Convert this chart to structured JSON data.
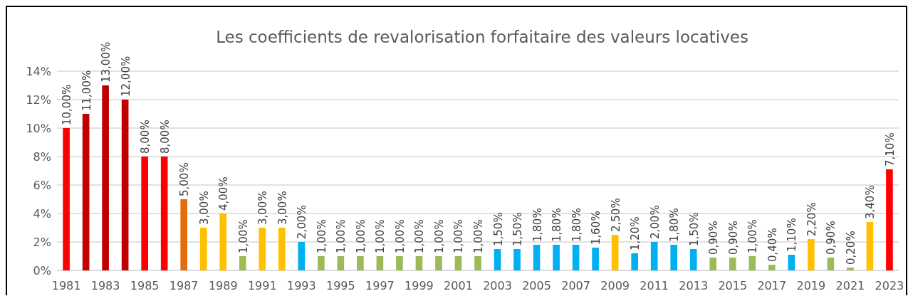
{
  "chart_data": {
    "type": "bar",
    "title": "Les coefficients de revalorisation forfaitaire des valeurs locatives",
    "categories": [
      "1981",
      null,
      "1983",
      null,
      "1985",
      null,
      "1987",
      null,
      "1989",
      null,
      "1991",
      null,
      "1993",
      null,
      "1995",
      null,
      "1997",
      null,
      "1999",
      null,
      "2001",
      null,
      "2003",
      null,
      "2005",
      null,
      "2007",
      null,
      "2009",
      null,
      "2011",
      null,
      "2013",
      null,
      "2015",
      null,
      "2017",
      null,
      "2019",
      null,
      "2021",
      null,
      "2023"
    ],
    "values": [
      10,
      11,
      13,
      12,
      8,
      8,
      5,
      3,
      4,
      1,
      3,
      3,
      2,
      1,
      1,
      1,
      1,
      1,
      1,
      1,
      1,
      1,
      1.5,
      1.5,
      1.8,
      1.8,
      1.8,
      1.6,
      2.5,
      1.2,
      2,
      1.8,
      1.5,
      0.9,
      0.9,
      1,
      0.4,
      1.1,
      2.2,
      0.9,
      0.2,
      3.4,
      7.1
    ],
    "value_labels": [
      "10,00%",
      "11,00%",
      "13,00%",
      "12,00%",
      "8,00%",
      "8,00%",
      "5,00%",
      "3,00%",
      "4,00%",
      "1,00%",
      "3,00%",
      "3,00%",
      "2,00%",
      "1,00%",
      "1,00%",
      "1,00%",
      "1,00%",
      "1,00%",
      "1,00%",
      "1,00%",
      "1,00%",
      "1,00%",
      "1,50%",
      "1,50%",
      "1,80%",
      "1,80%",
      "1,80%",
      "1,60%",
      "2,50%",
      "1,20%",
      "2,00%",
      "1,80%",
      "1,50%",
      "0,90%",
      "0,90%",
      "1,00%",
      "0,40%",
      "1,10%",
      "2,20%",
      "0,90%",
      "0,20%",
      "3,40%",
      "7,10%"
    ],
    "colors": [
      "#ff0000",
      "#c00000",
      "#c00000",
      "#c00000",
      "#ff0000",
      "#ff0000",
      "#e46c0a",
      "#ffc000",
      "#ffc000",
      "#9bbb59",
      "#ffc000",
      "#ffc000",
      "#00b0f0",
      "#9bbb59",
      "#9bbb59",
      "#9bbb59",
      "#9bbb59",
      "#9bbb59",
      "#9bbb59",
      "#9bbb59",
      "#9bbb59",
      "#9bbb59",
      "#00b0f0",
      "#00b0f0",
      "#00b0f0",
      "#00b0f0",
      "#00b0f0",
      "#00b0f0",
      "#ffc000",
      "#00b0f0",
      "#00b0f0",
      "#00b0f0",
      "#00b0f0",
      "#9bbb59",
      "#9bbb59",
      "#9bbb59",
      "#9bbb59",
      "#00b0f0",
      "#ffc000",
      "#9bbb59",
      "#9bbb59",
      "#ffc000",
      "#ff0000"
    ],
    "ylim": [
      0,
      14
    ],
    "yticks": [
      {
        "value": 0,
        "label": "0%"
      },
      {
        "value": 2,
        "label": "2%"
      },
      {
        "value": 4,
        "label": "4%"
      },
      {
        "value": 6,
        "label": "6%"
      },
      {
        "value": 8,
        "label": "8%"
      },
      {
        "value": 10,
        "label": "10%"
      },
      {
        "value": 12,
        "label": "12%"
      },
      {
        "value": 14,
        "label": "14%"
      }
    ],
    "grid": "y"
  }
}
